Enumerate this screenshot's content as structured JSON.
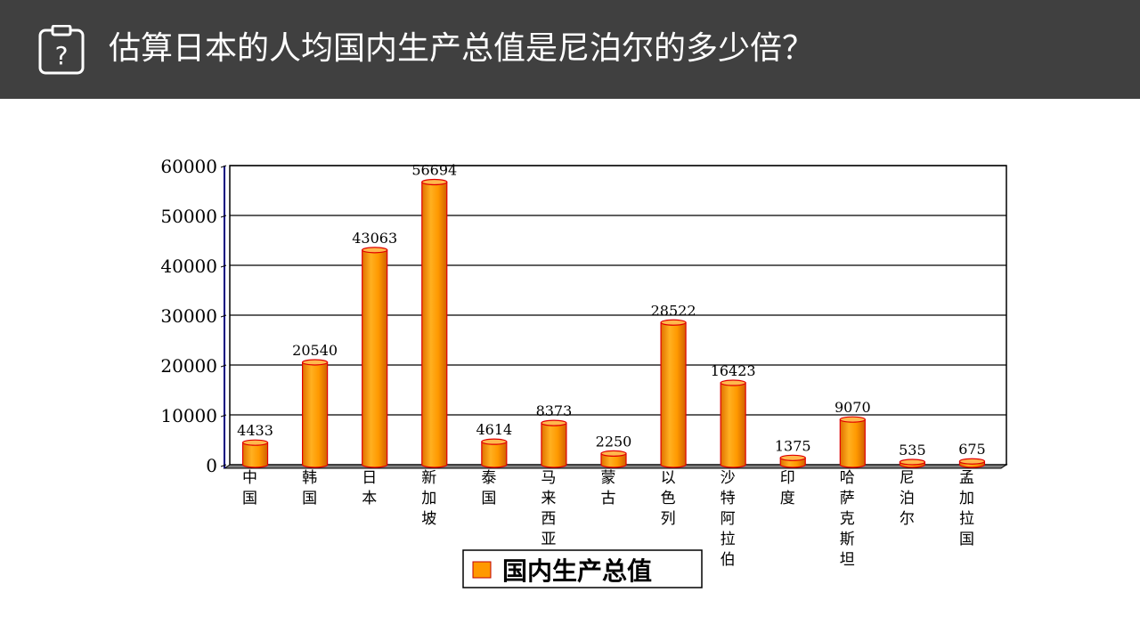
{
  "header": {
    "icon": "question-clipboard-icon",
    "title": "估算日本的人均国内生产总值是尼泊尔的多少倍？",
    "background": "#404040"
  },
  "chart_data": {
    "type": "bar",
    "style": "3d-cylinder",
    "categories": [
      "中国",
      "韩国",
      "日本",
      "新加坡",
      "泰国",
      "马来西亚",
      "蒙古",
      "以色列",
      "沙特阿拉伯",
      "印度",
      "哈萨克斯坦",
      "尼泊尔",
      "孟加拉国"
    ],
    "series": [
      {
        "name": "国内生产总值",
        "color": "#FF9900",
        "values": [
          4433,
          20540,
          43063,
          56694,
          4614,
          8373,
          2250,
          28522,
          16423,
          1375,
          9070,
          535,
          675
        ]
      }
    ],
    "yticks": [
      0,
      10000,
      20000,
      30000,
      40000,
      50000,
      60000
    ],
    "ylim": [
      0,
      60000
    ],
    "grid": true,
    "data_labels": true,
    "legend": "bottom-center"
  }
}
